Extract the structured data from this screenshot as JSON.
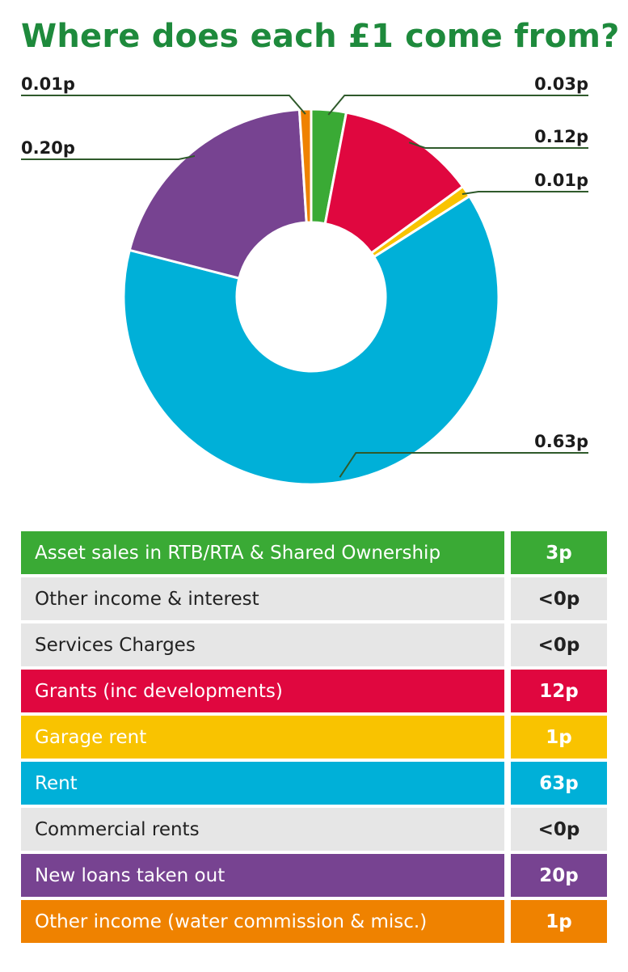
{
  "title": "Where does each £1 come from?",
  "chart_data": {
    "type": "pie",
    "donut": true,
    "title": "Where does each £1 come from?",
    "slices": [
      {
        "label": "0.03p",
        "category": "Asset sales in RTB/RTA & Shared Ownership",
        "value": 0.03,
        "color": "#3aaa35"
      },
      {
        "label": "0.12p",
        "category": "Grants (inc developments)",
        "value": 0.12,
        "color": "#e0073f"
      },
      {
        "label": "0.01p",
        "category": "Garage rent",
        "value": 0.01,
        "color": "#f9c300"
      },
      {
        "label": "0.63p",
        "category": "Rent",
        "value": 0.63,
        "color": "#00b0d8"
      },
      {
        "label": "0.20p",
        "category": "New loans taken out",
        "value": 0.2,
        "color": "#774391"
      },
      {
        "label": "0.01p",
        "category": "Other income (water commission & misc.)",
        "value": 0.01,
        "color": "#ef8200"
      }
    ]
  },
  "legend": [
    {
      "name": "Asset sales in RTB/RTA & Shared Ownership",
      "value": "3p",
      "color": "#3aaa35",
      "light": false
    },
    {
      "name": "Other income & interest",
      "value": "<0p",
      "color": "#e6e6e6",
      "light": true
    },
    {
      "name": "Services Charges",
      "value": "<0p",
      "color": "#e6e6e6",
      "light": true
    },
    {
      "name": "Grants (inc developments)",
      "value": "12p",
      "color": "#e0073f",
      "light": false
    },
    {
      "name": "Garage rent",
      "value": "1p",
      "color": "#f9c300",
      "light": false
    },
    {
      "name": "Rent",
      "value": "63p",
      "color": "#00b0d8",
      "light": false
    },
    {
      "name": "Commercial rents",
      "value": "<0p",
      "color": "#e6e6e6",
      "light": true
    },
    {
      "name": "New loans taken out",
      "value": "20p",
      "color": "#774391",
      "light": false
    },
    {
      "name": "Other income (water commission & misc.)",
      "value": "1p",
      "color": "#ef8200",
      "light": false
    }
  ]
}
